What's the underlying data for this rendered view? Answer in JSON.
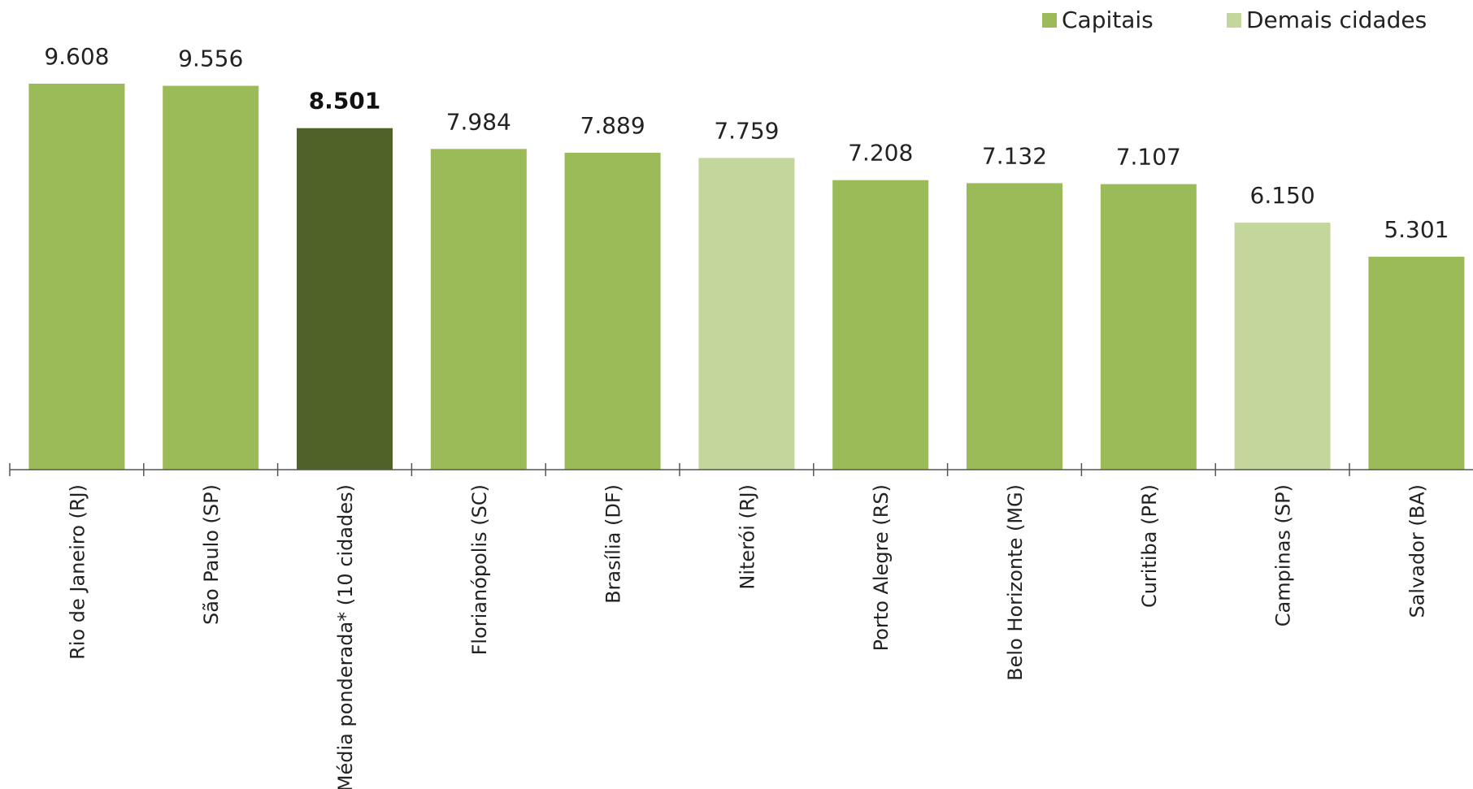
{
  "chart_data": {
    "type": "bar",
    "categories": [
      "Rio de Janeiro (RJ)",
      "São Paulo (SP)",
      "● Média ponderada* (10 cidades)",
      "Florianópolis (SC)",
      "Brasília (DF)",
      "Niterói (RJ)",
      "Porto Alegre (RS)",
      "Belo Horizonte (MG)",
      "Curitiba (PR)",
      "Campinas (SP)",
      "Salvador (BA)"
    ],
    "values": [
      9608,
      9556,
      8501,
      7984,
      7889,
      7759,
      7208,
      7132,
      7107,
      6150,
      5301
    ],
    "value_labels": [
      "9.608",
      "9.556",
      "8.501",
      "7.984",
      "7.889",
      "7.759",
      "7.208",
      "7.132",
      "7.107",
      "6.150",
      "5.301"
    ],
    "groups": [
      "capital",
      "capital",
      "average",
      "capital",
      "capital",
      "other",
      "capital",
      "capital",
      "capital",
      "other",
      "capital"
    ],
    "ylim": [
      0,
      9608
    ],
    "grid": false,
    "legend_position": "top-right",
    "legend": [
      {
        "name": "Capitais",
        "group": "capital"
      },
      {
        "name": "Demais cidades",
        "group": "other"
      }
    ],
    "colors": {
      "capital": "#9bbb59",
      "other": "#c3d69b",
      "average": "#4f6228",
      "axis": "#555555"
    }
  }
}
